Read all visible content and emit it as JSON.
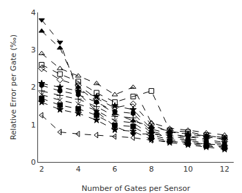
{
  "chart_data": {
    "type": "line",
    "x_label": "Number of Gates per Sensor",
    "y_label": "Relative Error per Gate (‰)",
    "x": [
      2,
      3,
      4,
      5,
      6,
      7,
      8,
      9,
      10,
      11,
      12
    ],
    "color": "black",
    "line_style": "dashed",
    "series": [
      {
        "marker": "triangle-down",
        "values": [
          3.8,
          3.2,
          1.85,
          1.35,
          0.95,
          0.75,
          0.75,
          0.7,
          0.68,
          0.65,
          0.62
        ]
      },
      {
        "marker": "triangle-up",
        "values": [
          3.5,
          3.05,
          2.0,
          1.6,
          1.3,
          1.1,
          0.95,
          0.82,
          0.75,
          0.7,
          0.65
        ]
      },
      {
        "marker": "triangle-up-open",
        "values": [
          2.9,
          2.5,
          2.3,
          2.1,
          1.8,
          2.0,
          1.05,
          0.9,
          0.85,
          0.78,
          0.72
        ]
      },
      {
        "marker": "square-open",
        "values": [
          2.6,
          2.35,
          2.15,
          1.85,
          1.6,
          1.75,
          1.9,
          0.85,
          0.8,
          0.72,
          0.65
        ]
      },
      {
        "marker": "diamond-open",
        "values": [
          2.5,
          2.2,
          2.05,
          1.7,
          1.45,
          1.55,
          1.0,
          0.8,
          0.75,
          0.68,
          0.6
        ]
      },
      {
        "marker": "star",
        "values": [
          2.1,
          2.0,
          1.9,
          1.75,
          1.5,
          1.4,
          0.88,
          0.75,
          0.68,
          0.6,
          0.52
        ]
      },
      {
        "marker": "hexagon",
        "values": [
          2.05,
          1.9,
          1.8,
          1.6,
          1.35,
          1.3,
          0.82,
          0.7,
          0.62,
          0.55,
          0.48
        ]
      },
      {
        "marker": "cross-thin",
        "values": [
          1.9,
          1.78,
          1.68,
          1.48,
          1.22,
          1.18,
          0.78,
          0.65,
          0.58,
          0.5,
          0.44
        ]
      },
      {
        "marker": "x-thin",
        "values": [
          1.8,
          1.65,
          1.55,
          1.38,
          1.1,
          1.05,
          0.72,
          0.6,
          0.54,
          0.46,
          0.4
        ]
      },
      {
        "marker": "square",
        "values": [
          1.7,
          1.52,
          1.42,
          1.25,
          0.98,
          0.95,
          0.66,
          0.56,
          0.5,
          0.43,
          0.38
        ]
      },
      {
        "marker": "star",
        "values": [
          1.6,
          1.4,
          1.3,
          1.12,
          0.86,
          0.82,
          0.6,
          0.52,
          0.46,
          0.4,
          0.34
        ]
      },
      {
        "marker": "triangle-left-open",
        "values": [
          1.25,
          0.8,
          0.75,
          0.72,
          0.68,
          0.65,
          0.58,
          0.55,
          0.52,
          0.48,
          0.45
        ]
      }
    ],
    "xlim": [
      1.8,
      12.5
    ],
    "ylim": [
      0,
      4
    ],
    "xticks": [
      2,
      4,
      6,
      8,
      10,
      12
    ],
    "yticks": [
      0,
      1,
      2,
      3,
      4
    ],
    "grid": false
  }
}
